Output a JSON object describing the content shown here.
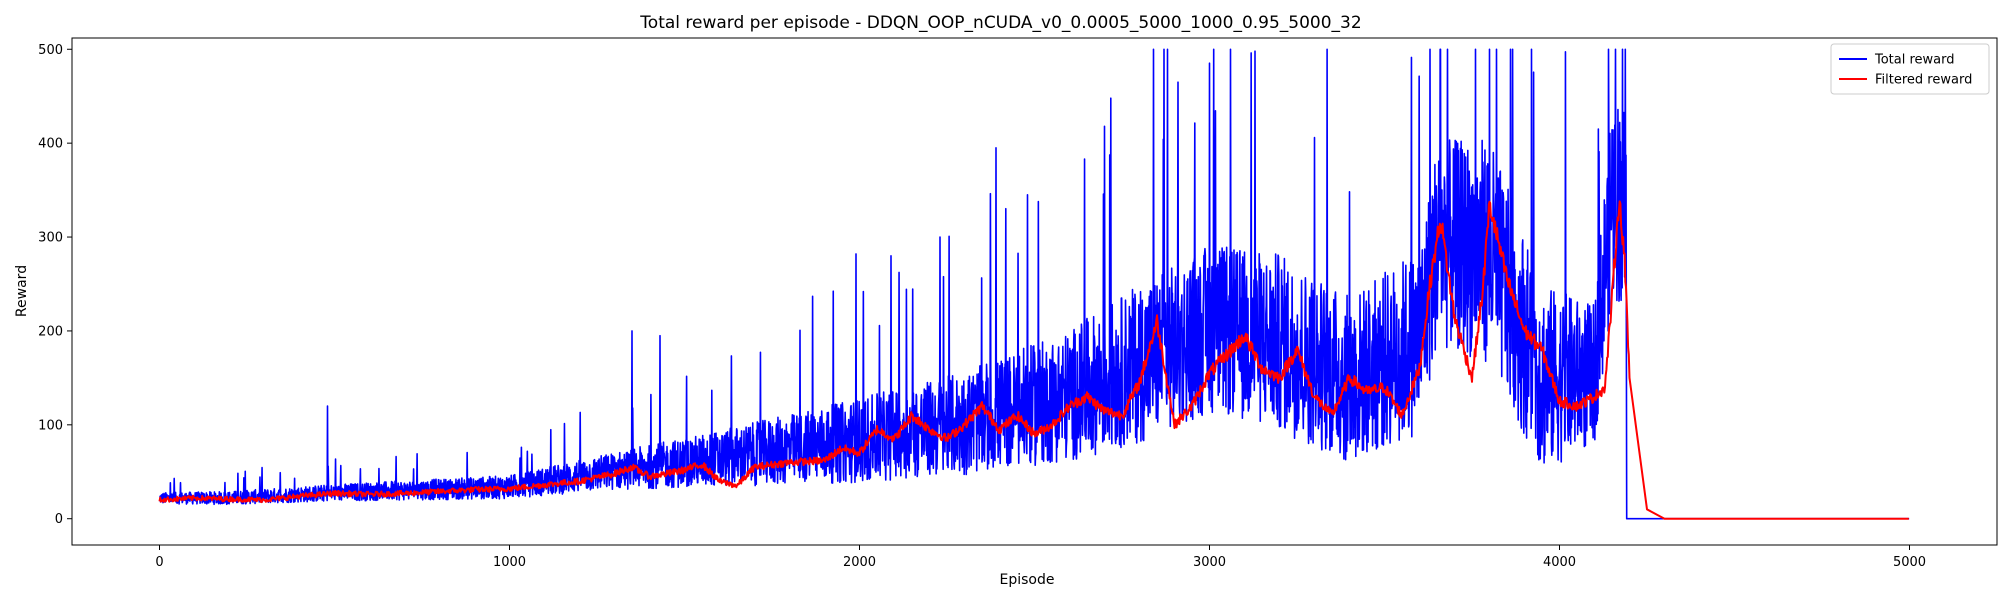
{
  "chart_data": {
    "type": "line",
    "title": "Total reward per episode - DDQN_OOP_nCUDA_v0_0.0005_5000_1000_0.95_5000_32",
    "xlabel": "Episode",
    "ylabel": "Reward",
    "xlim": [
      -250,
      5250
    ],
    "ylim": [
      -28,
      512
    ],
    "xticks": [
      0,
      1000,
      2000,
      3000,
      4000,
      5000
    ],
    "yticks": [
      0,
      100,
      200,
      300,
      400,
      500
    ],
    "grid": false,
    "legend_position": "top-right",
    "series": [
      {
        "name": "Total reward",
        "color": "#0000ff",
        "style": "noisy-raw",
        "episodes": 5000,
        "trend_x": [
          0,
          200,
          500,
          1000,
          1300,
          1600,
          2000,
          2300,
          2600,
          2800,
          3000,
          3200,
          3400,
          3600,
          3650,
          3800,
          3950,
          4100,
          4150,
          4190,
          4192,
          5000
        ],
        "trend_y": [
          20,
          20,
          25,
          30,
          45,
          55,
          70,
          85,
          110,
          140,
          175,
          160,
          120,
          160,
          260,
          250,
          120,
          130,
          310,
          300,
          0,
          0
        ],
        "spread_y": [
          12,
          14,
          18,
          25,
          40,
          60,
          90,
          110,
          140,
          170,
          180,
          190,
          180,
          200,
          220,
          240,
          200,
          150,
          220,
          220,
          0,
          0
        ],
        "peaks": [
          [
            480,
            120
          ],
          [
            1350,
            200
          ],
          [
            1430,
            195
          ],
          [
            1990,
            282
          ],
          [
            2090,
            280
          ],
          [
            2230,
            300
          ],
          [
            2390,
            395
          ],
          [
            2480,
            345
          ],
          [
            2700,
            418
          ],
          [
            2840,
            500
          ],
          [
            2870,
            500
          ],
          [
            2880,
            500
          ],
          [
            2910,
            465
          ],
          [
            3060,
            500
          ],
          [
            3130,
            498
          ],
          [
            3630,
            500
          ],
          [
            3660,
            500
          ],
          [
            3680,
            500
          ],
          [
            3760,
            500
          ],
          [
            3800,
            500
          ],
          [
            3820,
            500
          ],
          [
            3860,
            500
          ],
          [
            3920,
            500
          ],
          [
            4140,
            500
          ],
          [
            4160,
            500
          ],
          [
            4180,
            500
          ]
        ]
      },
      {
        "name": "Filtered reward",
        "color": "#ff0000",
        "style": "smooth",
        "x": [
          0,
          100,
          200,
          300,
          400,
          500,
          600,
          700,
          800,
          900,
          1000,
          1100,
          1200,
          1300,
          1350,
          1400,
          1450,
          1500,
          1550,
          1600,
          1650,
          1700,
          1800,
          1900,
          1950,
          2000,
          2050,
          2100,
          2150,
          2200,
          2250,
          2300,
          2350,
          2400,
          2450,
          2500,
          2550,
          2600,
          2650,
          2700,
          2750,
          2800,
          2850,
          2900,
          2950,
          3000,
          3050,
          3100,
          3150,
          3200,
          3250,
          3300,
          3350,
          3400,
          3450,
          3500,
          3550,
          3600,
          3630,
          3660,
          3700,
          3750,
          3780,
          3800,
          3850,
          3900,
          3950,
          4000,
          4050,
          4100,
          4130,
          4150,
          4170,
          4185,
          4200,
          4250,
          4300,
          5000
        ],
        "y": [
          20,
          22,
          21,
          20,
          24,
          27,
          26,
          27,
          29,
          31,
          32,
          36,
          40,
          48,
          55,
          45,
          48,
          52,
          58,
          40,
          35,
          55,
          60,
          62,
          75,
          70,
          95,
          85,
          110,
          95,
          85,
          100,
          120,
          95,
          110,
          90,
          100,
          120,
          130,
          115,
          110,
          145,
          210,
          100,
          120,
          155,
          175,
          195,
          160,
          150,
          180,
          130,
          110,
          150,
          135,
          140,
          110,
          160,
          250,
          320,
          215,
          150,
          240,
          335,
          255,
          200,
          180,
          125,
          120,
          130,
          140,
          235,
          340,
          285,
          150,
          10,
          0,
          0
        ]
      }
    ]
  }
}
